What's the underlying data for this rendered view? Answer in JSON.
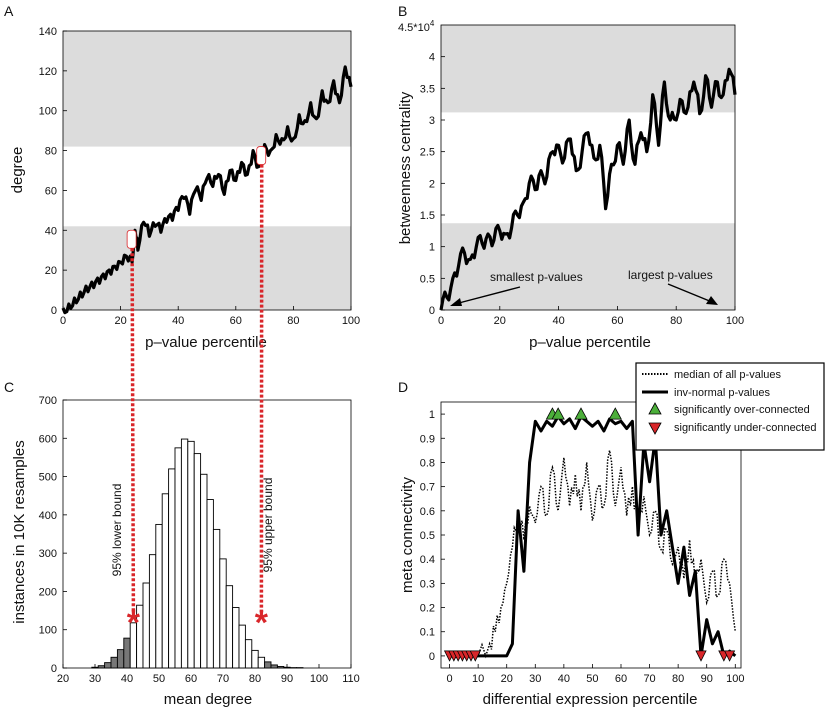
{
  "panels": {
    "A": {
      "label": "A",
      "type": "line",
      "xlabel": "p–value percentile",
      "ylabel": "degree",
      "xlim": [
        0,
        100
      ],
      "ylim": [
        0,
        140
      ],
      "xticks": [
        "0",
        "20",
        "40",
        "60",
        "80",
        "100"
      ],
      "yticks": [
        "0",
        "20",
        "40",
        "60",
        "80",
        "100",
        "120",
        "140"
      ],
      "bands": [
        {
          "from": 0,
          "to": 42
        },
        {
          "from": 82,
          "to": 140
        }
      ],
      "markers_x": [
        24,
        69
      ],
      "anchors_x": [
        0,
        2,
        4,
        6,
        8,
        10,
        12,
        14,
        16,
        18,
        20,
        22,
        24,
        25,
        26,
        28,
        30,
        32,
        34,
        36,
        38,
        40,
        42,
        44,
        46,
        48,
        50,
        52,
        54,
        56,
        58,
        60,
        62,
        64,
        66,
        68,
        70,
        72,
        74,
        76,
        78,
        80,
        82,
        84,
        86,
        88,
        90,
        92,
        94,
        96,
        98,
        100
      ],
      "anchors_y": [
        1,
        3,
        6,
        9,
        12,
        14,
        16,
        18,
        20,
        22,
        24,
        27,
        24,
        40,
        30,
        44,
        37,
        42,
        39,
        44,
        45,
        50,
        56,
        48,
        60,
        55,
        66,
        62,
        68,
        58,
        70,
        65,
        74,
        68,
        80,
        72,
        83,
        80,
        88,
        86,
        92,
        86,
        98,
        95,
        104,
        96,
        110,
        104,
        115,
        104,
        122,
        112
      ]
    },
    "B": {
      "label": "B",
      "type": "line",
      "xlabel": "p–value percentile",
      "ylabel": "betweenness centrality",
      "xlim": [
        0,
        100
      ],
      "ylim": [
        0,
        4.5
      ],
      "ymax_label": "4.5*10",
      "ymax_exp": "4",
      "xticks": [
        "0",
        "20",
        "40",
        "60",
        "80",
        "100"
      ],
      "yticks": [
        "0",
        "0.5",
        "1",
        "1.5",
        "2",
        "2.5",
        "3",
        "3.5",
        "4"
      ],
      "bands": [
        {
          "from": 0,
          "to": 1.37
        },
        {
          "from": 3.12,
          "to": 4.5
        }
      ],
      "anchors_x": [
        0,
        2,
        4,
        6,
        8,
        10,
        12,
        14,
        16,
        18,
        20,
        22,
        24,
        26,
        28,
        30,
        32,
        34,
        36,
        38,
        40,
        42,
        44,
        46,
        48,
        50,
        52,
        54,
        56,
        58,
        60,
        62,
        64,
        66,
        68,
        70,
        72,
        74,
        76,
        78,
        80,
        82,
        84,
        86,
        88,
        90,
        92,
        94,
        96,
        98,
        100
      ],
      "anchors_y": [
        0,
        0.2,
        0.5,
        0.7,
        0.9,
        0.8,
        1,
        1.05,
        1.2,
        1.1,
        1.25,
        1.2,
        1.3,
        1.5,
        1.7,
        2,
        1.9,
        2.2,
        2.1,
        2.5,
        2.6,
        2.4,
        2.7,
        2.2,
        2.5,
        2.8,
        2.4,
        2.6,
        1.6,
        2.3,
        2.6,
        2.3,
        3,
        2.3,
        2.8,
        2.5,
        3.4,
        2.6,
        3.6,
        3,
        3,
        3.3,
        3.2,
        3.6,
        3.1,
        3.7,
        3.2,
        3.6,
        3.4,
        3.8,
        3.4
      ],
      "annotations": {
        "smallest": "smallest p-values",
        "largest": "largest p-values"
      }
    },
    "C": {
      "label": "C",
      "type": "bar",
      "xlabel": "mean degree",
      "ylabel": "instances in 10K resamples",
      "xlim": [
        20,
        110
      ],
      "ylim": [
        0,
        700
      ],
      "xticks": [
        "20",
        "30",
        "40",
        "50",
        "60",
        "70",
        "80",
        "90",
        "100",
        "110"
      ],
      "yticks": [
        "0",
        "100",
        "200",
        "300",
        "400",
        "500",
        "600",
        "700"
      ],
      "bin_start": 29,
      "bin_width": 2,
      "values": [
        2,
        6,
        14,
        28,
        48,
        78,
        118,
        164,
        222,
        296,
        375,
        455,
        520,
        575,
        598,
        592,
        560,
        506,
        440,
        362,
        285,
        215,
        158,
        112,
        74,
        46,
        28,
        16,
        8,
        4,
        2,
        1,
        1
      ],
      "lower_bound": 42,
      "upper_bound": 82,
      "lower_label": "95% lower bound",
      "upper_label": "95% upper bound",
      "bound_marker_y": 130
    },
    "D": {
      "label": "D",
      "type": "line",
      "xlabel": "differential expression percentile",
      "ylabel": "meta connectivity",
      "xlim": [
        0,
        100
      ],
      "ylim": [
        0,
        1
      ],
      "xticks": [
        "0",
        "10",
        "20",
        "30",
        "40",
        "50",
        "60",
        "70",
        "80",
        "90",
        "100"
      ],
      "yticks": [
        "0",
        "0.1",
        "0.2",
        "0.3",
        "0.4",
        "0.5",
        "0.6",
        "0.7",
        "0.8",
        "0.9",
        "1"
      ],
      "legend": {
        "median": "median of all p-values",
        "invnormal": "inv-normal p-values",
        "over": "significantly over-connected",
        "under": "significantly under-connected"
      },
      "invnormal_x": [
        0,
        10,
        14,
        18,
        20,
        22,
        24,
        26,
        28,
        30,
        32,
        34,
        36,
        38,
        40,
        42,
        44,
        46,
        48,
        50,
        52,
        54,
        56,
        58,
        60,
        62,
        64,
        66,
        68,
        70,
        72,
        74,
        76,
        78,
        80,
        82,
        84,
        86,
        88,
        90,
        92,
        94,
        96,
        98,
        100
      ],
      "invnormal_y": [
        0,
        0,
        0,
        0,
        0,
        0.05,
        0.6,
        0.35,
        0.8,
        0.97,
        0.93,
        0.97,
        0.95,
        0.99,
        0.96,
        0.98,
        0.94,
        0.99,
        0.97,
        0.95,
        0.97,
        0.93,
        0.98,
        0.96,
        0.97,
        0.94,
        0.97,
        0.5,
        0.88,
        0.72,
        0.9,
        0.5,
        0.6,
        0.45,
        0.3,
        0.45,
        0.25,
        0.35,
        0,
        0.15,
        0.05,
        0.1,
        0,
        0.02,
        0
      ],
      "median_x": [
        0,
        10,
        14,
        16,
        18,
        20,
        22,
        24,
        26,
        28,
        30,
        32,
        34,
        36,
        38,
        40,
        42,
        44,
        46,
        48,
        50,
        52,
        54,
        56,
        58,
        60,
        62,
        64,
        66,
        68,
        70,
        72,
        74,
        76,
        78,
        80,
        82,
        84,
        86,
        88,
        90,
        92,
        94,
        96,
        98,
        100
      ],
      "median_y": [
        0,
        0,
        0.05,
        0.1,
        0.2,
        0.3,
        0.45,
        0.6,
        0.48,
        0.62,
        0.55,
        0.7,
        0.58,
        0.78,
        0.6,
        0.82,
        0.62,
        0.75,
        0.6,
        0.8,
        0.56,
        0.7,
        0.62,
        0.85,
        0.62,
        0.78,
        0.58,
        0.7,
        0.54,
        0.66,
        0.5,
        0.6,
        0.44,
        0.52,
        0.38,
        0.45,
        0.32,
        0.48,
        0.3,
        0.4,
        0.22,
        0.35,
        0.25,
        0.4,
        0.3,
        0.1
      ],
      "over_x": [
        36,
        38,
        46,
        58
      ],
      "under_x": [
        0,
        1.5,
        3,
        4.5,
        6,
        7.5,
        9,
        88,
        96,
        98
      ]
    }
  }
}
